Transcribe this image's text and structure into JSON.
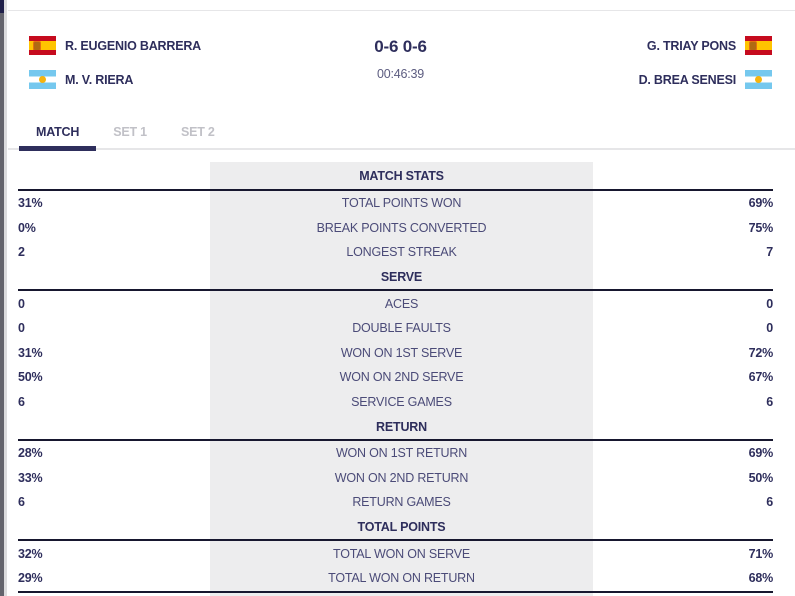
{
  "header": {
    "left_team": {
      "players": [
        {
          "name": "R. EUGENIO BARRERA",
          "flag": "es"
        },
        {
          "name": "M. V. RIERA",
          "flag": "ar"
        }
      ]
    },
    "right_team": {
      "players": [
        {
          "name": "G. TRIAY PONS",
          "flag": "es"
        },
        {
          "name": "D. BREA SENESI",
          "flag": "ar"
        }
      ]
    },
    "score": "0-6 0-6",
    "duration": "00:46:39"
  },
  "tabs": [
    {
      "label": "MATCH",
      "active": true
    },
    {
      "label": "SET 1",
      "active": false
    },
    {
      "label": "SET 2",
      "active": false
    }
  ],
  "stats_sections": [
    {
      "title": "MATCH STATS",
      "rows": [
        [
          "31%",
          "TOTAL POINTS WON",
          "69%"
        ],
        [
          "0%",
          "BREAK POINTS CONVERTED",
          "75%"
        ],
        [
          "2",
          "LONGEST STREAK",
          "7"
        ]
      ]
    },
    {
      "title": "SERVE",
      "rows": [
        [
          "0",
          "ACES",
          "0"
        ],
        [
          "0",
          "DOUBLE FAULTS",
          "0"
        ],
        [
          "31%",
          "WON ON 1ST SERVE",
          "72%"
        ],
        [
          "50%",
          "WON ON 2ND SERVE",
          "67%"
        ],
        [
          "6",
          "SERVICE GAMES",
          "6"
        ]
      ]
    },
    {
      "title": "RETURN",
      "rows": [
        [
          "28%",
          "WON ON 1ST RETURN",
          "69%"
        ],
        [
          "33%",
          "WON ON 2ND RETURN",
          "50%"
        ],
        [
          "6",
          "RETURN GAMES",
          "6"
        ]
      ]
    },
    {
      "title": "TOTAL POINTS",
      "rows": [
        [
          "32%",
          "TOTAL WON ON SERVE",
          "71%"
        ],
        [
          "29%",
          "TOTAL WON ON RETURN",
          "68%"
        ]
      ]
    }
  ],
  "icons": {
    "es": "spain-flag",
    "ar": "argentina-flag"
  },
  "colors": {
    "accent_navy": "#2e2e5c",
    "label_text": "#4b4b78",
    "inactive_tab": "#c1c1c7",
    "stats_column_bg": "#ededee",
    "divider_dark": "#17172f",
    "divider_light": "#e6e6e8",
    "duration_text": "#5c5c80"
  }
}
